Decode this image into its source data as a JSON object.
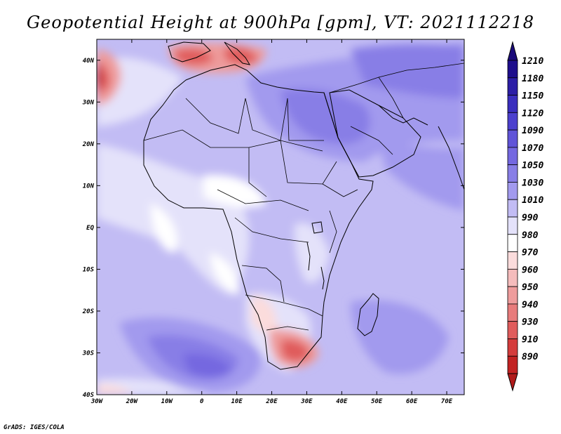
{
  "title": "Geopotential Height at 900hPa [gpm], VT: 2021112218",
  "credit": "GrADS: IGES/COLA",
  "map": {
    "lon_range": [
      -30,
      75
    ],
    "lat_range": [
      -40,
      45
    ],
    "lat_ticks": [
      {
        "value": 40,
        "label": "40N"
      },
      {
        "value": 30,
        "label": "30N"
      },
      {
        "value": 20,
        "label": "20N"
      },
      {
        "value": 10,
        "label": "10N"
      },
      {
        "value": 0,
        "label": "EQ"
      },
      {
        "value": -10,
        "label": "10S"
      },
      {
        "value": -20,
        "label": "20S"
      },
      {
        "value": -30,
        "label": "30S"
      },
      {
        "value": -40,
        "label": "40S"
      }
    ],
    "lon_ticks": [
      {
        "value": -30,
        "label": "30W"
      },
      {
        "value": -20,
        "label": "20W"
      },
      {
        "value": -10,
        "label": "10W"
      },
      {
        "value": 0,
        "label": "0"
      },
      {
        "value": 10,
        "label": "10E"
      },
      {
        "value": 20,
        "label": "20E"
      },
      {
        "value": 30,
        "label": "30E"
      },
      {
        "value": 40,
        "label": "40E"
      },
      {
        "value": 50,
        "label": "50E"
      },
      {
        "value": 60,
        "label": "60E"
      },
      {
        "value": 70,
        "label": "70E"
      }
    ]
  },
  "colorbar": {
    "levels": [
      {
        "label": "1210",
        "color": "#1e0e8c"
      },
      {
        "label": "1180",
        "color": "#2c1ea6"
      },
      {
        "label": "1150",
        "color": "#3a2ebe"
      },
      {
        "label": "1120",
        "color": "#4c40ce"
      },
      {
        "label": "1090",
        "color": "#6054d8"
      },
      {
        "label": "1070",
        "color": "#7468e0"
      },
      {
        "label": "1050",
        "color": "#887ee6"
      },
      {
        "label": "1030",
        "color": "#a29aee"
      },
      {
        "label": "1010",
        "color": "#c2bcf4"
      },
      {
        "label": "990",
        "color": "#e4e2fa"
      },
      {
        "label": "980",
        "color": "#ffffff"
      },
      {
        "label": "970",
        "color": "#fbdcdc"
      },
      {
        "label": "960",
        "color": "#f5bcbc"
      },
      {
        "label": "950",
        "color": "#ee9c9c"
      },
      {
        "label": "940",
        "color": "#e87c7c"
      },
      {
        "label": "930",
        "color": "#e05c5c"
      },
      {
        "label": "910",
        "color": "#d43c3c"
      },
      {
        "label": "890",
        "color": "#c22222"
      }
    ],
    "top_arrow_color": "#1a0a7a",
    "bottom_arrow_color": "#b01a1a"
  },
  "field_colors": {
    "deep_red": "#c22222",
    "red": "#e05c5c",
    "mid_red": "#ee9c9c",
    "pale_red": "#fbdcdc",
    "white": "#ffffff",
    "pale_blue": "#e4e2fa",
    "light_blue": "#c2bcf4",
    "blue": "#a29aee",
    "mid_blue": "#887ee6",
    "dark_blue": "#7468e0"
  }
}
